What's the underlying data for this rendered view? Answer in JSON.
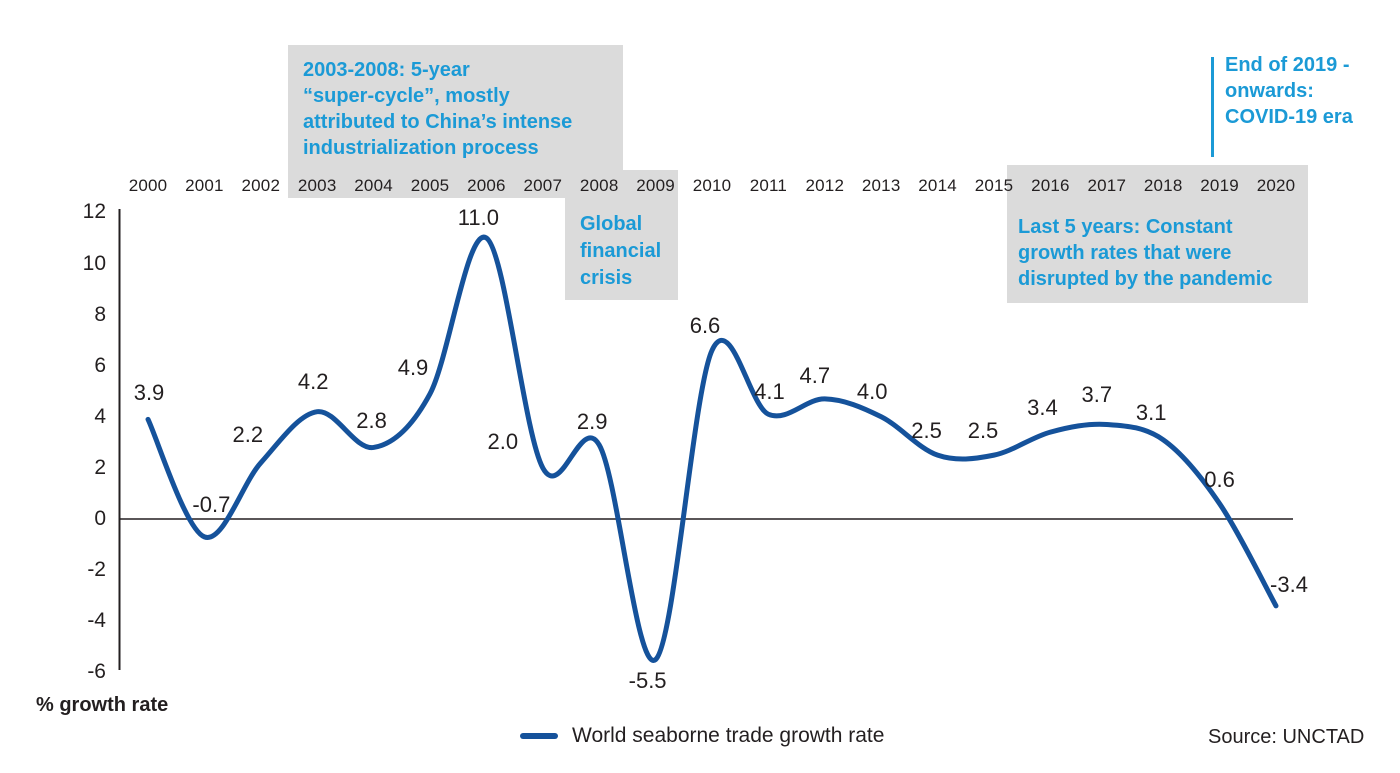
{
  "chart_data": {
    "type": "line",
    "title": "",
    "x": [
      2000,
      2001,
      2002,
      2003,
      2004,
      2005,
      2006,
      2007,
      2008,
      2009,
      2010,
      2011,
      2012,
      2013,
      2014,
      2015,
      2016,
      2017,
      2018,
      2019,
      2020
    ],
    "series": [
      {
        "name": "World seaborne trade growth rate",
        "values": [
          3.9,
          -0.7,
          2.2,
          4.2,
          2.8,
          4.9,
          11.0,
          2.0,
          2.9,
          -5.5,
          6.6,
          4.1,
          4.7,
          4.0,
          2.5,
          2.5,
          3.4,
          3.7,
          3.1,
          0.6,
          -3.4
        ]
      }
    ],
    "xlabel": "",
    "ylabel": "% growth rate",
    "ylim": [
      -6,
      12
    ],
    "yticks": [
      12,
      10,
      8,
      6,
      4,
      2,
      0,
      -2,
      -4,
      -6
    ],
    "grid": false,
    "legend_position": "bottom-center",
    "x_axis_position": "top",
    "line_color": "#15529b",
    "data_label_format": "one-decimal"
  },
  "annotations": {
    "text_color": "#1b9ad6",
    "box_color": "#dbdbdb",
    "super_cycle": {
      "text": "2003-2008: 5-year\n“super-cycle”, mostly\nattributed to China’s intense\nindustrialization process"
    },
    "financial_crisis": {
      "text": "Global\nfinancial\ncrisis"
    },
    "last_5_years": {
      "text": "Last 5 years: Constant\ngrowth rates that were\ndisrupted by the pandemic"
    },
    "covid": {
      "text": "End of 2019 -\nonwards:\nCOVID-19 era"
    }
  },
  "legend": {
    "label": "World seaborne trade growth rate"
  },
  "footer": {
    "source": "Source: UNCTAD"
  }
}
